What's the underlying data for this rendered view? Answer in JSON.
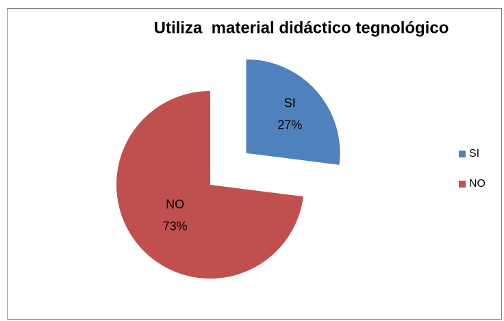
{
  "chart_data": {
    "type": "pie",
    "title": "Utiliza  material didáctico tegnológico",
    "categories": [
      "SI",
      "NO"
    ],
    "values": [
      27,
      73
    ],
    "value_labels": [
      "27%",
      "73%"
    ],
    "colors": [
      "#4f81bd",
      "#c0504d"
    ],
    "legend": "right"
  }
}
